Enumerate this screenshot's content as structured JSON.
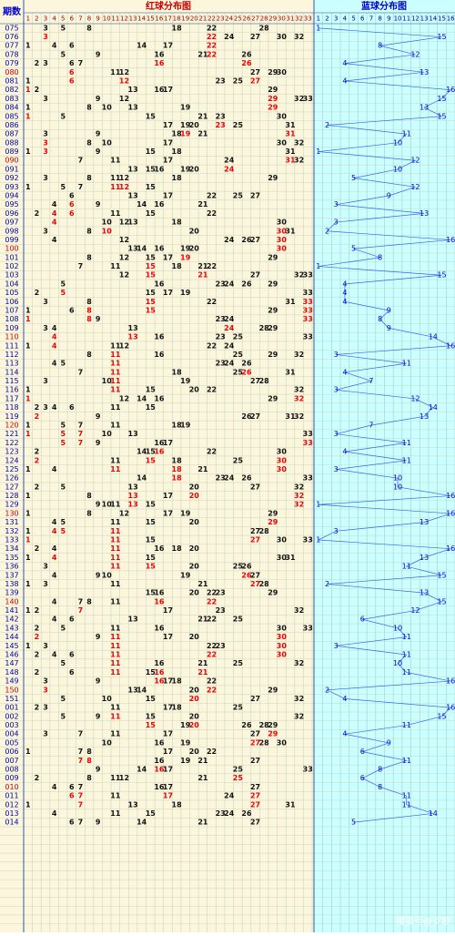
{
  "header": {
    "period": "期数",
    "red_title": "红球分布图",
    "blue_title": "蓝球分布图"
  },
  "red_columns": [
    1,
    2,
    3,
    4,
    5,
    6,
    7,
    8,
    9,
    10,
    11,
    12,
    13,
    14,
    15,
    16,
    17,
    18,
    19,
    20,
    21,
    22,
    23,
    24,
    25,
    26,
    27,
    28,
    29,
    30,
    31,
    32,
    33
  ],
  "blue_columns": [
    1,
    2,
    3,
    4,
    5,
    6,
    7,
    8,
    9,
    10,
    11,
    12,
    13,
    14,
    15,
    16
  ],
  "rows": [
    {
      "period": "075",
      "red": [
        3,
        5,
        8,
        18,
        22,
        28
      ],
      "blue": 1
    },
    {
      "period": "076",
      "red": [
        3,
        22,
        24,
        27,
        30,
        32
      ],
      "blue": 15
    },
    {
      "period": "077",
      "red": [
        1,
        4,
        6,
        14,
        17,
        22
      ],
      "blue": 8
    },
    {
      "period": "078",
      "red": [
        5,
        9,
        16,
        21,
        22,
        26
      ],
      "blue": 12
    },
    {
      "period": "079",
      "red": [
        2,
        3,
        6,
        7,
        16,
        26
      ],
      "blue": 4
    },
    {
      "period": "080",
      "red": [
        6,
        11,
        12,
        27,
        29,
        30
      ],
      "blue": 13
    },
    {
      "period": "081",
      "red": [
        1,
        6,
        12,
        23,
        25,
        27
      ],
      "blue": 4
    },
    {
      "period": "082",
      "red": [
        1,
        2,
        13,
        16,
        17,
        29
      ],
      "blue": 16
    },
    {
      "period": "083",
      "red": [
        3,
        9,
        12,
        29,
        32,
        33
      ],
      "blue": 15
    },
    {
      "period": "084",
      "red": [
        1,
        8,
        10,
        13,
        19,
        29
      ],
      "blue": 13
    },
    {
      "period": "085",
      "red": [
        1,
        5,
        15,
        21,
        23,
        30
      ],
      "blue": 15
    },
    {
      "period": "086",
      "red": [
        17,
        19,
        20,
        23,
        25,
        31
      ],
      "blue": 2
    },
    {
      "period": "087",
      "red": [
        3,
        9,
        18,
        19,
        21,
        31
      ],
      "blue": 11
    },
    {
      "period": "088",
      "red": [
        3,
        8,
        10,
        17,
        30,
        32
      ],
      "blue": 10
    },
    {
      "period": "089",
      "red": [
        1,
        3,
        9,
        15,
        18,
        31
      ],
      "blue": 1
    },
    {
      "period": "090",
      "red": [
        7,
        11,
        17,
        24,
        31,
        32
      ],
      "blue": 12
    },
    {
      "period": "091",
      "red": [
        13,
        15,
        16,
        19,
        20,
        24
      ],
      "blue": 10
    },
    {
      "period": "092",
      "red": [
        3,
        8,
        11,
        12,
        18,
        29
      ],
      "blue": 5
    },
    {
      "period": "093",
      "red": [
        1,
        5,
        7,
        11,
        12,
        15
      ],
      "blue": 12
    },
    {
      "period": "094",
      "red": [
        6,
        13,
        17,
        22,
        25,
        27
      ],
      "blue": 9
    },
    {
      "period": "095",
      "red": [
        4,
        6,
        9,
        14,
        16,
        21
      ],
      "blue": 3
    },
    {
      "period": "096",
      "red": [
        2,
        4,
        6,
        11,
        15,
        22
      ],
      "blue": 13
    },
    {
      "period": "097",
      "red": [
        4,
        10,
        12,
        13,
        18,
        30
      ],
      "blue": 3
    },
    {
      "period": "098",
      "red": [
        3,
        8,
        10,
        20,
        30,
        31
      ],
      "blue": 2
    },
    {
      "period": "099",
      "red": [
        4,
        12,
        24,
        26,
        27,
        30
      ],
      "blue": 16
    },
    {
      "period": "100",
      "red": [
        13,
        14,
        16,
        19,
        20,
        30
      ],
      "blue": 5
    },
    {
      "period": "101",
      "red": [
        8,
        12,
        15,
        17,
        19,
        29
      ],
      "blue": 8
    },
    {
      "period": "102",
      "red": [
        7,
        11,
        15,
        18,
        21,
        22
      ],
      "blue": 1
    },
    {
      "period": "103",
      "red": [
        12,
        15,
        21,
        27,
        32,
        33
      ],
      "blue": 15
    },
    {
      "period": "104",
      "red": [
        5,
        16,
        23,
        24,
        26,
        29
      ],
      "blue": 4
    },
    {
      "period": "105",
      "red": [
        2,
        5,
        15,
        17,
        19,
        33
      ],
      "blue": 4
    },
    {
      "period": "106",
      "red": [
        3,
        8,
        15,
        22,
        31,
        33
      ],
      "blue": 4
    },
    {
      "period": "107",
      "red": [
        1,
        6,
        8,
        15,
        29,
        33
      ],
      "blue": 9
    },
    {
      "period": "108",
      "red": [
        1,
        8,
        9,
        23,
        24,
        33
      ],
      "blue": 8
    },
    {
      "period": "109",
      "red": [
        3,
        4,
        13,
        24,
        28,
        29
      ],
      "blue": 9
    },
    {
      "period": "110",
      "red": [
        4,
        13,
        16,
        23,
        25,
        33
      ],
      "blue": 14
    },
    {
      "period": "111",
      "red": [
        1,
        4,
        11,
        12,
        22,
        24
      ],
      "blue": 16
    },
    {
      "period": "112",
      "red": [
        8,
        11,
        16,
        25,
        29,
        32
      ],
      "blue": 3
    },
    {
      "period": "113",
      "red": [
        4,
        5,
        11,
        23,
        24,
        26
      ],
      "blue": 11
    },
    {
      "period": "114",
      "red": [
        7,
        11,
        18,
        25,
        26,
        31
      ],
      "blue": 4
    },
    {
      "period": "115",
      "red": [
        3,
        10,
        11,
        19,
        27,
        28
      ],
      "blue": 7
    },
    {
      "period": "116",
      "red": [
        1,
        11,
        15,
        20,
        22,
        32
      ],
      "blue": 3
    },
    {
      "period": "117",
      "red": [
        1,
        12,
        14,
        16,
        29,
        32
      ],
      "blue": 12
    },
    {
      "period": "118",
      "red": [
        2,
        3,
        4,
        6,
        11,
        15
      ],
      "blue": 14
    },
    {
      "period": "119",
      "red": [
        2,
        9,
        26,
        27,
        31,
        32
      ],
      "blue": 13
    },
    {
      "period": "120",
      "red": [
        1,
        5,
        7,
        11,
        18,
        19
      ],
      "blue": 7
    },
    {
      "period": "121",
      "red": [
        1,
        5,
        7,
        10,
        13,
        33
      ],
      "blue": 3
    },
    {
      "period": "122",
      "red": [
        5,
        7,
        9,
        16,
        17,
        33
      ],
      "blue": 11
    },
    {
      "period": "123",
      "red": [
        2,
        14,
        15,
        16,
        22,
        30
      ],
      "blue": 4
    },
    {
      "period": "124",
      "red": [
        2,
        11,
        15,
        18,
        25,
        30
      ],
      "blue": 11
    },
    {
      "period": "125",
      "red": [
        1,
        4,
        11,
        18,
        21,
        30
      ],
      "blue": 3
    },
    {
      "period": "126",
      "red": [
        14,
        18,
        23,
        24,
        26,
        33
      ],
      "blue": 10
    },
    {
      "period": "127",
      "red": [
        2,
        5,
        13,
        20,
        27,
        32
      ],
      "blue": 10
    },
    {
      "period": "128",
      "red": [
        1,
        8,
        13,
        17,
        20,
        32
      ],
      "blue": 16
    },
    {
      "period": "129",
      "red": [
        9,
        10,
        11,
        13,
        15,
        32
      ],
      "blue": 1
    },
    {
      "period": "130",
      "red": [
        1,
        8,
        12,
        17,
        19,
        29
      ],
      "blue": 16
    },
    {
      "period": "131",
      "red": [
        4,
        5,
        11,
        15,
        20,
        29
      ],
      "blue": 13
    },
    {
      "period": "132",
      "red": [
        1,
        4,
        5,
        11,
        27,
        28
      ],
      "blue": 3
    },
    {
      "period": "133",
      "red": [
        1,
        11,
        15,
        27,
        30,
        33
      ],
      "blue": 1
    },
    {
      "period": "134",
      "red": [
        2,
        4,
        11,
        16,
        18,
        20
      ],
      "blue": 16
    },
    {
      "period": "135",
      "red": [
        1,
        4,
        11,
        15,
        30,
        31
      ],
      "blue": 13
    },
    {
      "period": "136",
      "red": [
        3,
        11,
        15,
        20,
        25,
        26
      ],
      "blue": 11
    },
    {
      "period": "137",
      "red": [
        4,
        9,
        10,
        19,
        26,
        27
      ],
      "blue": 15
    },
    {
      "period": "138",
      "red": [
        1,
        3,
        11,
        21,
        27,
        28
      ],
      "blue": 2
    },
    {
      "period": "139",
      "red": [
        15,
        16,
        20,
        22,
        23,
        29
      ],
      "blue": 13
    },
    {
      "period": "140",
      "red": [
        4,
        7,
        8,
        11,
        16,
        22
      ],
      "blue": 15
    },
    {
      "period": "141",
      "red": [
        1,
        2,
        7,
        17,
        23,
        32
      ],
      "blue": 12
    },
    {
      "period": "142",
      "red": [
        4,
        6,
        13,
        21,
        22,
        25
      ],
      "blue": 6
    },
    {
      "period": "143",
      "red": [
        2,
        5,
        11,
        16,
        30,
        33
      ],
      "blue": 10
    },
    {
      "period": "144",
      "red": [
        2,
        9,
        11,
        17,
        20,
        30
      ],
      "blue": 11
    },
    {
      "period": "145",
      "red": [
        1,
        3,
        11,
        22,
        23,
        30
      ],
      "blue": 3
    },
    {
      "period": "146",
      "red": [
        2,
        4,
        6,
        11,
        22,
        30
      ],
      "blue": 11
    },
    {
      "period": "147",
      "red": [
        5,
        11,
        16,
        21,
        25,
        32
      ],
      "blue": 10
    },
    {
      "period": "148",
      "red": [
        2,
        6,
        11,
        15,
        16,
        21
      ],
      "blue": 11
    },
    {
      "period": "149",
      "red": [
        3,
        9,
        16,
        17,
        18,
        22
      ],
      "blue": 16
    },
    {
      "period": "150",
      "red": [
        3,
        13,
        14,
        20,
        22,
        29
      ],
      "blue": 2
    },
    {
      "period": "151",
      "red": [
        5,
        10,
        15,
        20,
        27,
        32
      ],
      "blue": 4
    },
    {
      "period": "001",
      "red": [
        2,
        3,
        11,
        17,
        18,
        25
      ],
      "blue": 16
    },
    {
      "period": "002",
      "red": [
        5,
        9,
        11,
        15,
        20,
        32
      ],
      "blue": 15
    },
    {
      "period": "003",
      "red": [
        15,
        19,
        20,
        26,
        28,
        29
      ],
      "blue": 11
    },
    {
      "period": "004",
      "red": [
        3,
        7,
        11,
        17,
        27,
        29
      ],
      "blue": 4
    },
    {
      "period": "005",
      "red": [
        10,
        16,
        19,
        27,
        28,
        30
      ],
      "blue": 9
    },
    {
      "period": "006",
      "red": [
        1,
        7,
        8,
        17,
        20,
        22
      ],
      "blue": 6
    },
    {
      "period": "007",
      "red": [
        7,
        8,
        16,
        19,
        21,
        27
      ],
      "blue": 11
    },
    {
      "period": "008",
      "red": [
        9,
        14,
        16,
        17,
        25,
        33
      ],
      "blue": 8
    },
    {
      "period": "009",
      "red": [
        2,
        8,
        11,
        12,
        21,
        25
      ],
      "blue": 6
    },
    {
      "period": "010",
      "red": [
        4,
        6,
        7,
        16,
        17,
        27
      ],
      "blue": 8
    },
    {
      "period": "011",
      "red": [
        6,
        7,
        11,
        17,
        24,
        27
      ],
      "blue": 11
    },
    {
      "period": "012",
      "red": [
        1,
        7,
        13,
        18,
        27,
        31
      ],
      "blue": 11
    },
    {
      "period": "013",
      "red": [
        4,
        11,
        15,
        23,
        24,
        26
      ],
      "blue": 14
    },
    {
      "period": "014",
      "red": [
        6,
        7,
        9,
        14,
        21,
        27
      ],
      "blue": 5
    }
  ],
  "watermark": "搜狐号@岁歌"
}
